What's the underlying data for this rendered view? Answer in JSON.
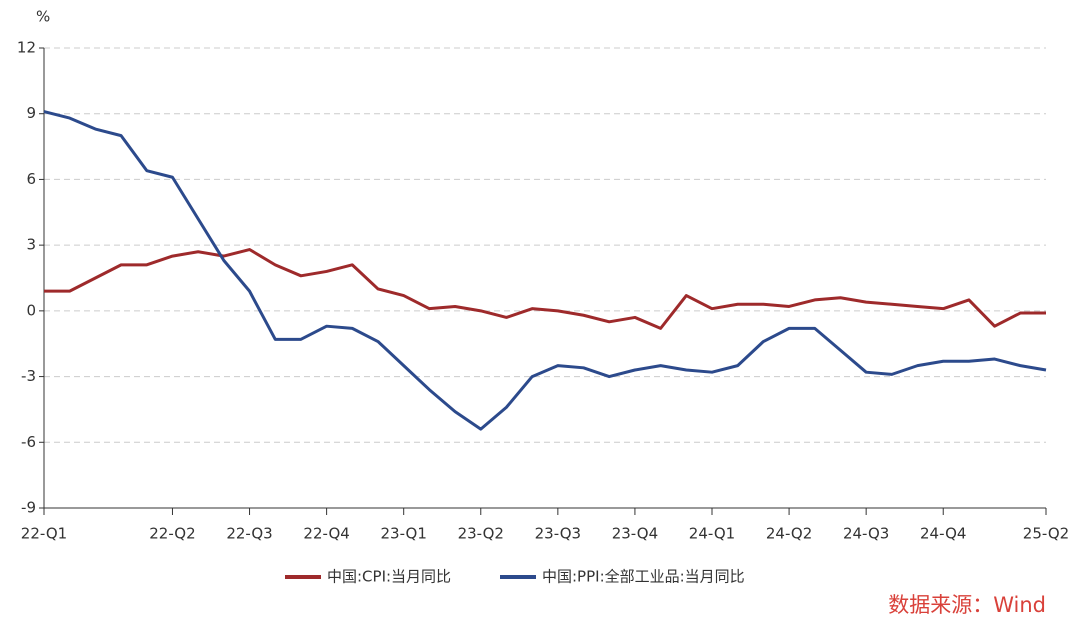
{
  "chart_data": {
    "type": "line",
    "y_unit": "%",
    "source": "数据来源：Wind",
    "categories": [
      "22-Q1",
      null,
      null,
      null,
      null,
      "22-Q2",
      null,
      null,
      "22-Q3",
      null,
      null,
      "22-Q4",
      null,
      null,
      "23-Q1",
      null,
      null,
      "23-Q2",
      null,
      null,
      "23-Q3",
      null,
      null,
      "23-Q4",
      null,
      null,
      "24-Q1",
      null,
      null,
      "24-Q2",
      null,
      null,
      "24-Q3",
      null,
      null,
      "24-Q4",
      null,
      null,
      null,
      "25-Q2"
    ],
    "series": [
      {
        "name": "中国:CPI:当月同比",
        "color": "#9e2a2b",
        "values": [
          0.9,
          0.9,
          1.5,
          2.1,
          2.1,
          2.5,
          2.7,
          2.5,
          2.8,
          2.1,
          1.6,
          1.8,
          2.1,
          1.0,
          0.7,
          0.1,
          0.2,
          0.0,
          -0.3,
          0.1,
          0.0,
          -0.2,
          -0.5,
          -0.3,
          -0.8,
          0.7,
          0.1,
          0.3,
          0.3,
          0.2,
          0.5,
          0.6,
          0.4,
          0.3,
          0.2,
          0.1,
          0.5,
          -0.7,
          -0.1,
          -0.1
        ]
      },
      {
        "name": "中国:PPI:全部工业品:当月同比",
        "color": "#2c4a8c",
        "values": [
          9.1,
          8.8,
          8.3,
          8.0,
          6.4,
          6.1,
          4.2,
          2.3,
          0.9,
          -1.3,
          -1.3,
          -0.7,
          -0.8,
          -1.4,
          -2.5,
          -3.6,
          -4.6,
          -5.4,
          -4.4,
          -3.0,
          -2.5,
          -2.6,
          -3.0,
          -2.7,
          -2.5,
          -2.7,
          -2.8,
          -2.5,
          -1.4,
          -0.8,
          -0.8,
          -1.8,
          -2.8,
          -2.9,
          -2.5,
          -2.3,
          -2.3,
          -2.2,
          -2.5,
          -2.7
        ]
      }
    ],
    "ylim": [
      -9,
      12
    ],
    "yticks": [
      -9,
      -6,
      -3,
      0,
      3,
      6,
      9,
      12
    ],
    "grid": true,
    "legend": "bottom"
  }
}
